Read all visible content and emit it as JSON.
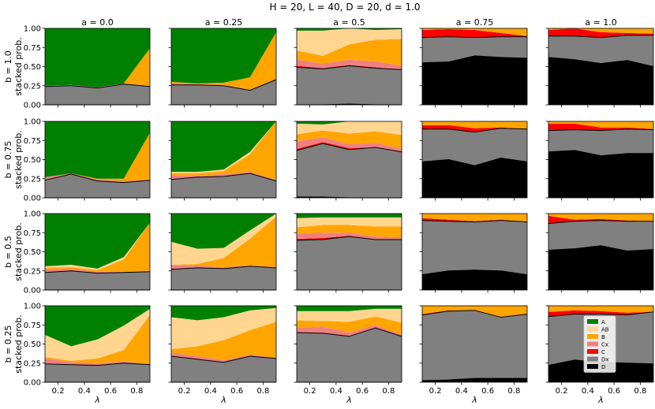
{
  "chart_data": {
    "type": "area",
    "title": "H = 20, L = 40,     D = 20, d = 1.0",
    "xlabel": "λ",
    "ylabel": "stacked prob.",
    "x": [
      0.1,
      0.3,
      0.5,
      0.7,
      0.9
    ],
    "xlim": [
      0.1,
      0.9
    ],
    "ylim": [
      0.0,
      1.0
    ],
    "xticks": [
      "0.2",
      "0.4",
      "0.6",
      "0.8"
    ],
    "yticks": [
      "0.00",
      "0.25",
      "0.50",
      "0.75",
      "1.00"
    ],
    "col_labels": [
      "a = 0.0",
      "a = 0.25",
      "a = 0.5",
      "a = 0.75",
      "a = 1.0"
    ],
    "row_labels": [
      "b = 1.0",
      "b = 0.75",
      "b = 0.5",
      "b = 0.25"
    ],
    "legend": {
      "placement": "bottom-left of last panel",
      "entries": [
        "A",
        "AB",
        "B",
        "Cx",
        "C",
        "Dx",
        "D"
      ]
    },
    "series_order_bottom_to_top": [
      "D",
      "Dx",
      "C",
      "Cx",
      "B",
      "AB",
      "A"
    ],
    "colors": {
      "A": "#008000",
      "AB": "#ffd590",
      "B": "#ffa500",
      "Cx": "#f08080",
      "C": "#ff0000",
      "Dx": "#808080",
      "D": "#000000"
    },
    "panels": [
      [
        {
          "D": [
            0,
            0,
            0,
            0,
            0
          ],
          "Dx": [
            0.24,
            0.25,
            0.22,
            0.27,
            0.24
          ],
          "C": [
            0,
            0,
            0,
            0,
            0
          ],
          "Cx": [
            0.01,
            0.01,
            0.01,
            0.01,
            0.01
          ],
          "B": [
            0,
            0,
            0,
            0,
            0.49
          ],
          "AB": [
            0,
            0,
            0,
            0,
            0
          ]
        },
        {
          "D": [
            0,
            0,
            0,
            0,
            0
          ],
          "Dx": [
            0.26,
            0.26,
            0.25,
            0.19,
            0.33
          ],
          "C": [
            0,
            0,
            0,
            0,
            0
          ],
          "Cx": [
            0.02,
            0.01,
            0.01,
            0.01,
            0.01
          ],
          "B": [
            0.02,
            0.01,
            0.03,
            0.16,
            0.61
          ],
          "AB": [
            0,
            0,
            0,
            0,
            0
          ]
        },
        {
          "D": [
            0,
            0,
            0.01,
            0,
            0
          ],
          "Dx": [
            0.49,
            0.47,
            0.5,
            0.48,
            0.46
          ],
          "C": [
            0.02,
            0.01,
            0.01,
            0.01,
            0
          ],
          "Cx": [
            0.08,
            0.06,
            0.07,
            0.08,
            0.05
          ],
          "B": [
            0.12,
            0.1,
            0.2,
            0.28,
            0.35
          ],
          "AB": [
            0.26,
            0.33,
            0.21,
            0.13,
            0.13
          ]
        },
        {
          "D": [
            0.55,
            0.56,
            0.64,
            0.62,
            0.61
          ],
          "Dx": [
            0.33,
            0.33,
            0.24,
            0.27,
            0.28
          ],
          "C": [
            0.1,
            0.1,
            0.1,
            0.05,
            0.01
          ],
          "Cx": [
            0,
            0,
            0,
            0,
            0
          ],
          "B": [
            0.02,
            0.01,
            0.02,
            0.06,
            0.1
          ],
          "AB": [
            0,
            0,
            0,
            0,
            0
          ]
        },
        {
          "D": [
            0.62,
            0.59,
            0.54,
            0.58,
            0.5
          ],
          "Dx": [
            0.28,
            0.31,
            0.34,
            0.33,
            0.41
          ],
          "C": [
            0.08,
            0.1,
            0.07,
            0.03,
            0.02
          ],
          "Cx": [
            0,
            0,
            0,
            0,
            0
          ],
          "B": [
            0.02,
            0,
            0.05,
            0.06,
            0.07
          ],
          "AB": [
            0,
            0,
            0,
            0,
            0
          ]
        }
      ],
      [
        {
          "D": [
            0,
            0,
            0,
            0,
            0
          ],
          "Dx": [
            0.23,
            0.31,
            0.22,
            0.2,
            0.23
          ],
          "C": [
            0,
            0,
            0,
            0,
            0
          ],
          "Cx": [
            0.04,
            0.01,
            0.02,
            0.02,
            0.01
          ],
          "B": [
            0,
            0,
            0.01,
            0.03,
            0.61
          ],
          "AB": [
            0,
            0,
            0,
            0,
            0
          ]
        },
        {
          "D": [
            0,
            0,
            0,
            0,
            0
          ],
          "Dx": [
            0.24,
            0.27,
            0.28,
            0.32,
            0.22
          ],
          "C": [
            0,
            0,
            0,
            0,
            0
          ],
          "Cx": [
            0.05,
            0.02,
            0.03,
            0.02,
            0.01
          ],
          "B": [
            0.03,
            0.03,
            0.04,
            0.23,
            0.77
          ],
          "AB": [
            0.02,
            0.02,
            0.02,
            0.03,
            0
          ]
        },
        {
          "D": [
            0.01,
            0.01,
            0,
            0,
            0
          ],
          "Dx": [
            0.61,
            0.7,
            0.63,
            0.66,
            0.6
          ],
          "C": [
            0.02,
            0.02,
            0.02,
            0,
            0
          ],
          "Cx": [
            0.1,
            0.06,
            0.05,
            0.06,
            0.04
          ],
          "B": [
            0.09,
            0.09,
            0.14,
            0.15,
            0.18
          ],
          "AB": [
            0.14,
            0.08,
            0.16,
            0.13,
            0.18
          ]
        },
        {
          "D": [
            0.47,
            0.5,
            0.42,
            0.52,
            0.47
          ],
          "Dx": [
            0.43,
            0.4,
            0.44,
            0.39,
            0.43
          ],
          "C": [
            0.05,
            0.05,
            0.05,
            0.01,
            0
          ],
          "Cx": [
            0,
            0,
            0,
            0,
            0
          ],
          "B": [
            0.05,
            0.05,
            0.09,
            0.08,
            0.1
          ],
          "AB": [
            0,
            0,
            0,
            0,
            0
          ]
        },
        {
          "D": [
            0.6,
            0.62,
            0.55,
            0.58,
            0.58
          ],
          "Dx": [
            0.28,
            0.27,
            0.33,
            0.32,
            0.31
          ],
          "C": [
            0.09,
            0.08,
            0.04,
            0.02,
            0.01
          ],
          "Cx": [
            0,
            0,
            0,
            0,
            0
          ],
          "B": [
            0.03,
            0.03,
            0.08,
            0.08,
            0.1
          ],
          "AB": [
            0,
            0,
            0,
            0,
            0
          ]
        }
      ],
      [
        {
          "D": [
            0,
            0,
            0,
            0,
            0
          ],
          "Dx": [
            0.23,
            0.25,
            0.22,
            0.23,
            0.24
          ],
          "C": [
            0,
            0,
            0,
            0,
            0
          ],
          "Cx": [
            0.04,
            0.03,
            0.02,
            0.01,
            0.01
          ],
          "B": [
            0.02,
            0.02,
            0.02,
            0.16,
            0.63
          ],
          "AB": [
            0.02,
            0.03,
            0.02,
            0.03,
            0
          ]
        },
        {
          "D": [
            0,
            0,
            0,
            0,
            0
          ],
          "Dx": [
            0.27,
            0.29,
            0.28,
            0.31,
            0.29
          ],
          "C": [
            0,
            0,
            0,
            0,
            0
          ],
          "Cx": [
            0.06,
            0.03,
            0.02,
            0.01,
            0.01
          ],
          "B": [
            0,
            0.02,
            0.12,
            0.35,
            0.66
          ],
          "AB": [
            0.3,
            0.2,
            0.13,
            0.11,
            0.04
          ]
        },
        {
          "D": [
            0,
            0,
            0,
            0,
            0
          ],
          "Dx": [
            0.65,
            0.66,
            0.7,
            0.66,
            0.66
          ],
          "C": [
            0.02,
            0.02,
            0.01,
            0,
            0
          ],
          "Cx": [
            0.07,
            0.07,
            0.04,
            0.04,
            0.03
          ],
          "B": [
            0.08,
            0.1,
            0.1,
            0.13,
            0.14
          ],
          "AB": [
            0.12,
            0.1,
            0.1,
            0.12,
            0.12
          ]
        },
        {
          "D": [
            0.2,
            0.25,
            0.26,
            0.25,
            0.2
          ],
          "Dx": [
            0.71,
            0.65,
            0.63,
            0.66,
            0.69
          ],
          "C": [
            0.03,
            0.02,
            0.01,
            0.01,
            0
          ],
          "Cx": [
            0,
            0,
            0,
            0,
            0
          ],
          "B": [
            0.06,
            0.08,
            0.1,
            0.08,
            0.11
          ],
          "AB": [
            0,
            0,
            0,
            0,
            0
          ]
        },
        {
          "D": [
            0.52,
            0.54,
            0.58,
            0.51,
            0.53
          ],
          "Dx": [
            0.35,
            0.36,
            0.33,
            0.39,
            0.37
          ],
          "C": [
            0.1,
            0.02,
            0.02,
            0.01,
            0
          ],
          "Cx": [
            0,
            0,
            0,
            0,
            0
          ],
          "B": [
            0.03,
            0.08,
            0.07,
            0.09,
            0.1
          ],
          "AB": [
            0,
            0,
            0,
            0,
            0
          ]
        }
      ],
      [
        {
          "D": [
            0,
            0,
            0,
            0,
            0
          ],
          "Dx": [
            0.24,
            0.23,
            0.22,
            0.25,
            0.23
          ],
          "C": [
            0,
            0,
            0,
            0,
            0
          ],
          "Cx": [
            0.07,
            0.03,
            0.03,
            0.02,
            0.01
          ],
          "B": [
            0.02,
            0.02,
            0.06,
            0.15,
            0.64
          ],
          "AB": [
            0.29,
            0.19,
            0.25,
            0.32,
            0.08
          ]
        },
        {
          "D": [
            0,
            0,
            0,
            0,
            0
          ],
          "Dx": [
            0.34,
            0.3,
            0.26,
            0.34,
            0.31
          ],
          "C": [
            0,
            0,
            0,
            0,
            0
          ],
          "Cx": [
            0.05,
            0.04,
            0.03,
            0.02,
            0.01
          ],
          "B": [
            0.04,
            0.13,
            0.26,
            0.32,
            0.47
          ],
          "AB": [
            0.42,
            0.34,
            0.3,
            0.26,
            0.18
          ]
        },
        {
          "D": [
            0,
            0,
            0,
            0,
            0
          ],
          "Dx": [
            0.65,
            0.64,
            0.6,
            0.71,
            0.6
          ],
          "C": [
            0,
            0,
            0,
            0,
            0
          ],
          "Cx": [
            0.06,
            0.09,
            0.05,
            0.04,
            0.02
          ],
          "B": [
            0.1,
            0.07,
            0.14,
            0.11,
            0.16
          ],
          "AB": [
            0.12,
            0.13,
            0.14,
            0.1,
            0.18
          ]
        },
        {
          "D": [
            0.02,
            0.03,
            0.05,
            0.05,
            0.05
          ],
          "Dx": [
            0.86,
            0.9,
            0.89,
            0.8,
            0.84
          ],
          "C": [
            0.01,
            0.01,
            0,
            0,
            0
          ],
          "Cx": [
            0,
            0,
            0,
            0,
            0
          ],
          "B": [
            0.11,
            0.06,
            0.06,
            0.15,
            0.11
          ],
          "AB": [
            0,
            0,
            0,
            0,
            0
          ]
        },
        {
          "D": [
            0.22,
            0.29,
            0.26,
            0.25,
            0.24
          ],
          "Dx": [
            0.64,
            0.6,
            0.63,
            0.63,
            0.68
          ],
          "C": [
            0.06,
            0.05,
            0.04,
            0.03,
            0
          ],
          "Cx": [
            0,
            0,
            0,
            0,
            0
          ],
          "B": [
            0.08,
            0.06,
            0.07,
            0.09,
            0.08
          ],
          "AB": [
            0,
            0,
            0,
            0,
            0
          ]
        }
      ]
    ]
  }
}
